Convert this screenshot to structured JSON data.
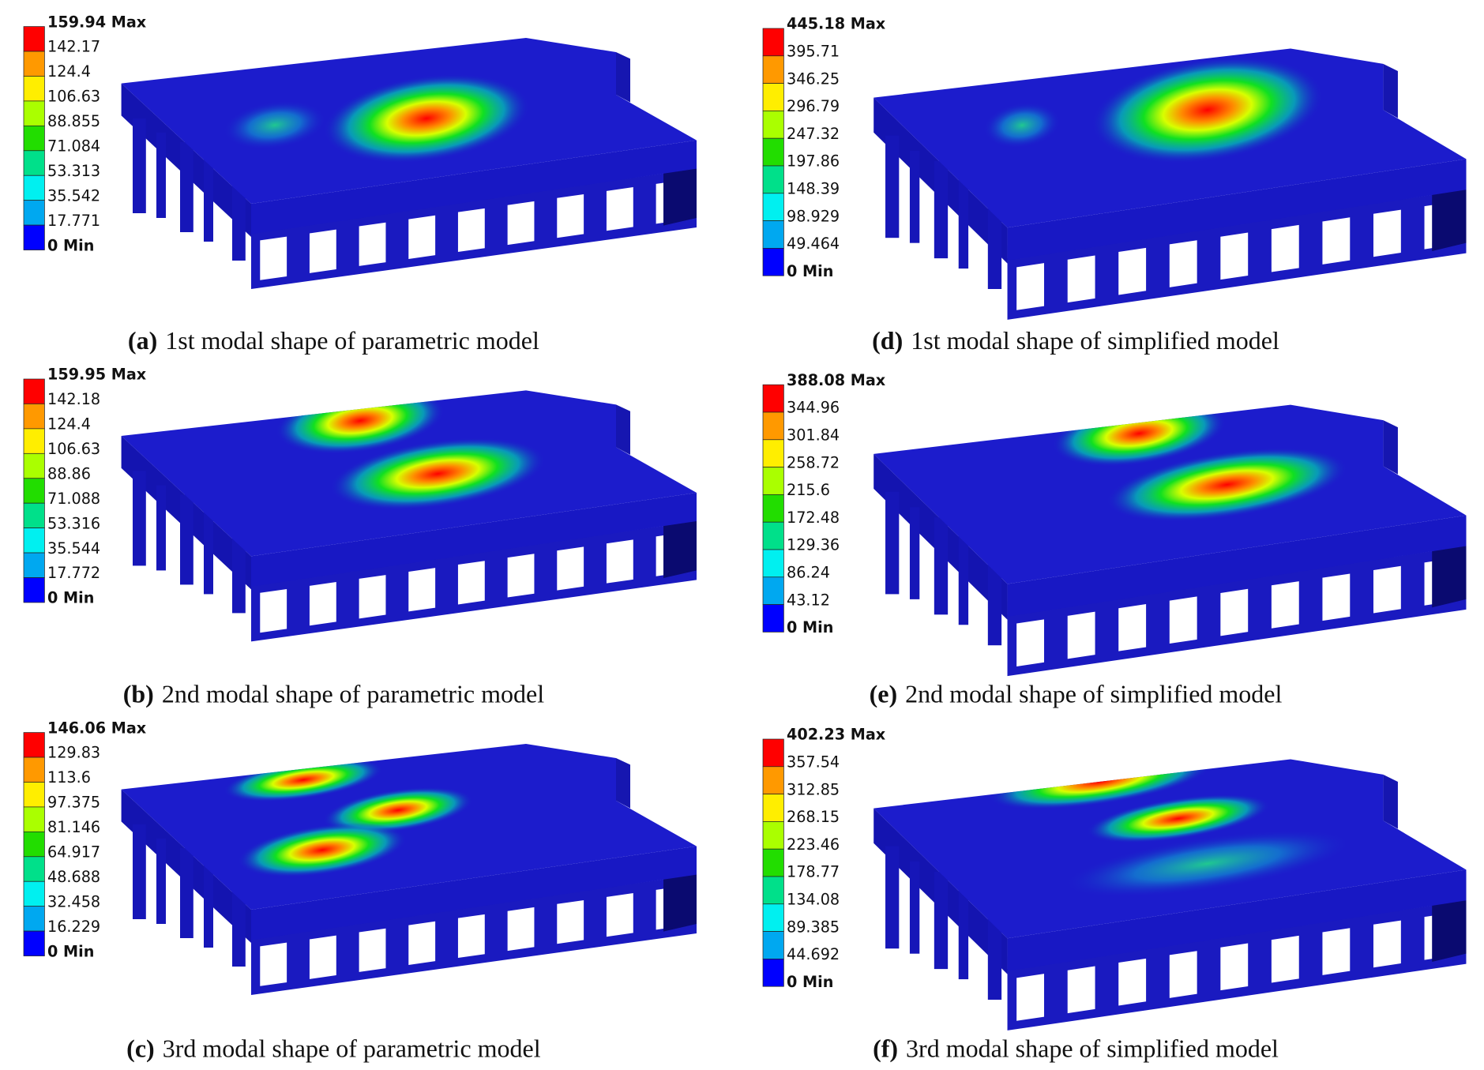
{
  "panels": [
    {
      "caption_label": "(a)",
      "caption": "1st modal shape of parametric model",
      "legend": [
        "159.94 Max",
        "142.17",
        "124.4",
        "106.63",
        "88.855",
        "71.084",
        "53.313",
        "35.542",
        "17.771",
        "0 Min"
      ]
    },
    {
      "caption_label": "(b)",
      "caption": "2nd modal shape of parametric model",
      "legend": [
        "159.95 Max",
        "142.18",
        "124.4",
        "106.63",
        "88.86",
        "71.088",
        "53.316",
        "35.544",
        "17.772",
        "0 Min"
      ]
    },
    {
      "caption_label": "(c)",
      "caption": "3rd modal shape of parametric model",
      "legend": [
        "146.06 Max",
        "129.83",
        "113.6",
        "97.375",
        "81.146",
        "64.917",
        "48.688",
        "32.458",
        "16.229",
        "0 Min"
      ]
    },
    {
      "caption_label": "(d)",
      "caption": "1st modal shape of simplified model",
      "legend": [
        "445.18 Max",
        "395.71",
        "346.25",
        "296.79",
        "247.32",
        "197.86",
        "148.39",
        "98.929",
        "49.464",
        "0 Min"
      ]
    },
    {
      "caption_label": "(e)",
      "caption": "2nd modal shape of simplified model",
      "legend": [
        "388.08 Max",
        "344.96",
        "301.84",
        "258.72",
        "215.6",
        "172.48",
        "129.36",
        "86.24",
        "43.12",
        "0 Min"
      ]
    },
    {
      "caption_label": "(f)",
      "caption": "3rd modal shape of simplified model",
      "legend": [
        "402.23 Max",
        "357.54",
        "312.85",
        "268.15",
        "223.46",
        "178.77",
        "134.08",
        "89.385",
        "44.692",
        "0 Min"
      ]
    }
  ]
}
